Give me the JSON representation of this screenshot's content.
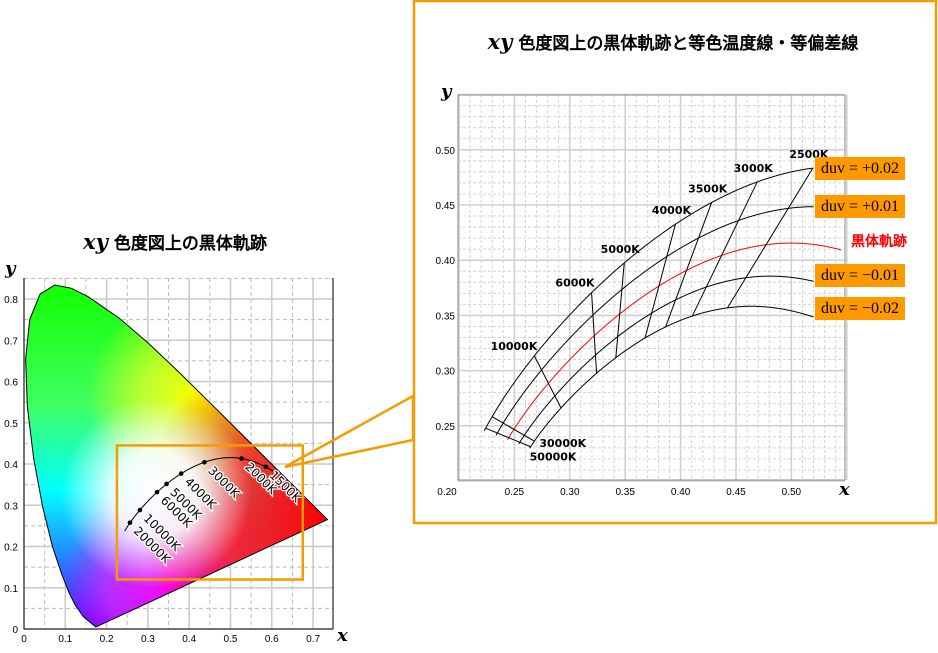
{
  "colors": {
    "accent_orange": "#f59c00",
    "label_orange": "#ff9900",
    "locus_red": "#ff0000",
    "grid": "#c8c8c8"
  },
  "chart_data": [
    {
      "type": "line",
      "title_var": "xy",
      "title": "色度図上の黒体軌跡",
      "xlabel": "x",
      "ylabel": "y",
      "xlim": [
        0,
        0.75
      ],
      "ylim": [
        0,
        0.85
      ],
      "xticks": [
        "0",
        "0.1",
        "0.2",
        "0.3",
        "0.4",
        "0.5",
        "0.6",
        "0.7"
      ],
      "yticks": [
        "0",
        "0.1",
        "0.2",
        "0.3",
        "0.4",
        "0.5",
        "0.6",
        "0.7",
        "0.8"
      ],
      "grid": true,
      "spectral_locus": [
        [
          0.1741,
          0.005
        ],
        [
          0.144,
          0.0297
        ],
        [
          0.1241,
          0.0578
        ],
        [
          0.1096,
          0.0868
        ],
        [
          0.0913,
          0.1327
        ],
        [
          0.0687,
          0.2007
        ],
        [
          0.0454,
          0.295
        ],
        [
          0.0235,
          0.4127
        ],
        [
          0.0082,
          0.5384
        ],
        [
          0.0039,
          0.6548
        ],
        [
          0.0139,
          0.7502
        ],
        [
          0.0389,
          0.812
        ],
        [
          0.0743,
          0.8338
        ],
        [
          0.1142,
          0.8262
        ],
        [
          0.1547,
          0.8059
        ],
        [
          0.2296,
          0.7543
        ],
        [
          0.3016,
          0.6923
        ],
        [
          0.3731,
          0.6245
        ],
        [
          0.4441,
          0.5547
        ],
        [
          0.5125,
          0.4866
        ],
        [
          0.5752,
          0.4242
        ],
        [
          0.627,
          0.3725
        ],
        [
          0.6658,
          0.334
        ],
        [
          0.6915,
          0.3083
        ],
        [
          0.719,
          0.2809
        ],
        [
          0.7347,
          0.2653
        ]
      ],
      "blackbody_points": [
        {
          "label": "1500K",
          "x": 0.5857,
          "y": 0.3931
        },
        {
          "label": "2000K",
          "x": 0.5267,
          "y": 0.4133
        },
        {
          "label": "3000K",
          "x": 0.4369,
          "y": 0.4041
        },
        {
          "label": "4000K",
          "x": 0.3805,
          "y": 0.3768
        },
        {
          "label": "5000K",
          "x": 0.3451,
          "y": 0.3516
        },
        {
          "label": "6000K",
          "x": 0.3221,
          "y": 0.3318
        },
        {
          "label": "10000K",
          "x": 0.2807,
          "y": 0.2884
        },
        {
          "label": "20000K",
          "x": 0.2565,
          "y": 0.2577
        }
      ],
      "zoom_region": {
        "x": [
          0.225,
          0.675
        ],
        "y": [
          0.12,
          0.445
        ]
      }
    },
    {
      "type": "line",
      "title_var": "xy",
      "title": "色度図上の黒体軌跡と等色温度線・等偏差線",
      "xlabel": "x",
      "ylabel": "y",
      "xlim": [
        0.2,
        0.55
      ],
      "ylim": [
        0.2,
        0.55
      ],
      "xticks": [
        "0.20",
        "0.25",
        "0.30",
        "0.35",
        "0.40",
        "0.45",
        "0.50"
      ],
      "yticks": [
        "0.25",
        "0.30",
        "0.35",
        "0.40",
        "0.45",
        "0.50"
      ],
      "grid": true,
      "isotherms_K": [
        2500,
        3000,
        3500,
        4000,
        5000,
        6000,
        10000,
        30000,
        50000
      ],
      "isotherm_labels": [
        "2500K",
        "3000K",
        "3500K",
        "4000K",
        "5000K",
        "6000K",
        "10000K",
        "30000K",
        "50000K"
      ],
      "duv_lines": [
        {
          "duv": 0.02,
          "label": "duv = +0.02"
        },
        {
          "duv": 0.01,
          "label": "duv = +0.01"
        },
        {
          "duv": 0,
          "label": "黒体軌跡"
        },
        {
          "duv": -0.01,
          "label": "duv = −0.01"
        },
        {
          "duv": -0.02,
          "label": "duv = −0.02"
        }
      ]
    }
  ]
}
